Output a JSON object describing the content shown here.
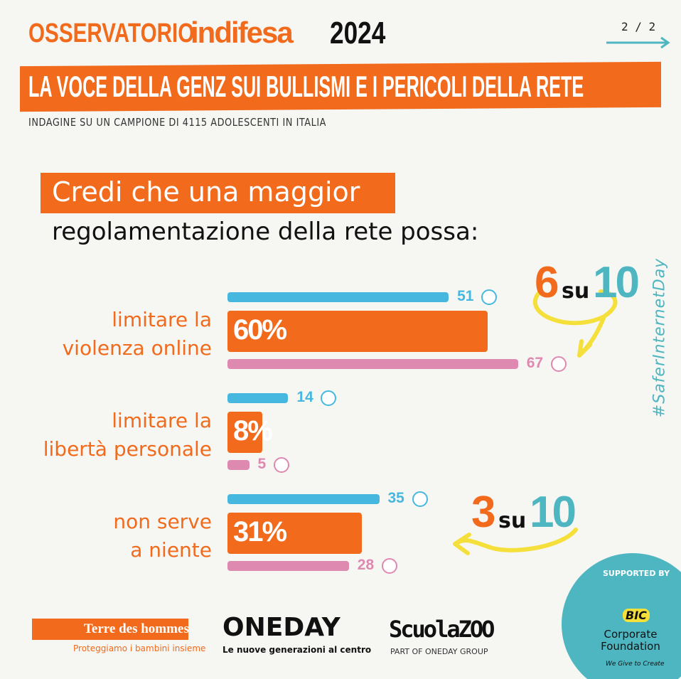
{
  "header": {
    "brand_prefix": "OSSERVATORIO",
    "brand_name": "indifesa",
    "year": "2024",
    "page": "2 / 2",
    "title": "LA VOCE DELLA GENZ SUI BULLISMI E I PERICOLI DELLA RETE",
    "subtitle": "INDAGINE SU UN CAMPIONE DI 4115 ADOLESCENTI IN ITALIA"
  },
  "question": {
    "line1": "Credi che una maggior",
    "line2": "regolamentazione della rete possa:"
  },
  "hashtag": "#SaferInternetDay",
  "chart_data": {
    "type": "bar",
    "orientation": "horizontal",
    "categories": [
      "limitare la\nviolenza online",
      "limitare la\nlibertà personale",
      "non serve\na niente"
    ],
    "series": [
      {
        "color": "#46b8e0",
        "values": [
          51,
          14,
          35
        ]
      },
      {
        "color": "#f26a1b",
        "values": [
          60,
          8,
          31
        ],
        "value_labels": [
          "60%",
          "8%",
          "31%"
        ]
      },
      {
        "color": "#dd89b0",
        "values": [
          67,
          5,
          28
        ]
      }
    ],
    "annotations": [
      {
        "number": "6",
        "word": "su",
        "total": "10"
      },
      {
        "number": "3",
        "word": "su",
        "total": "10"
      }
    ]
  },
  "footer": {
    "tdh_name": "Terre des hommes",
    "tdh_tagline": "Proteggiamo i bambini insieme",
    "oneday_name": "ONEDAY",
    "oneday_tagline": "Le nuove generazioni al centro",
    "scuolazoo_name": "ScuolaZOO",
    "scuolazoo_tagline": "PART OF ONEDAY GROUP",
    "supported_by": "SUPPORTED BY",
    "bic": "BIC",
    "bic_foundation": "Corporate Foundation",
    "bic_tagline": "We Give to Create"
  }
}
